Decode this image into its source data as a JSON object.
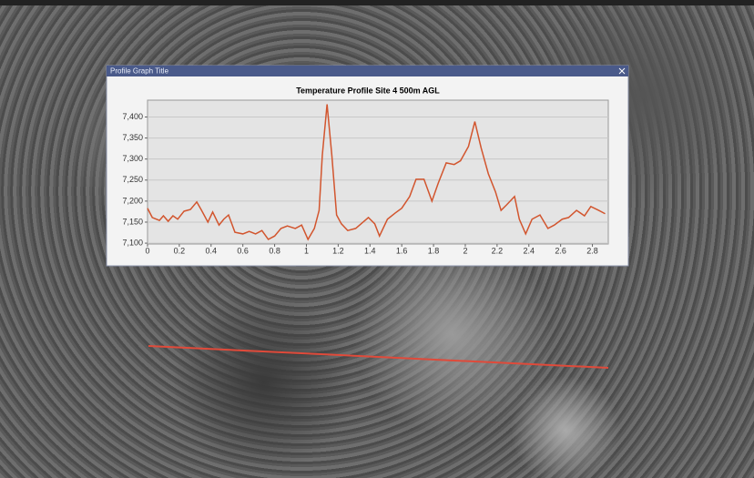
{
  "window": {
    "title": "Profile Graph Title"
  },
  "chart_data": {
    "type": "line",
    "title": "Temperature Profile   Site 4   500m AGL",
    "xlim": [
      0,
      2.9
    ],
    "ylim": [
      7098,
      7440
    ],
    "xticks": [
      0,
      0.2,
      0.4,
      0.6,
      0.8,
      1,
      1.2,
      1.4,
      1.6,
      1.8,
      2,
      2.2,
      2.4,
      2.6,
      2.8
    ],
    "yticks": [
      {
        "value": 7100,
        "label": "7,100"
      },
      {
        "value": 7150,
        "label": "7,150"
      },
      {
        "value": 7200,
        "label": "7,200"
      },
      {
        "value": 7250,
        "label": "7,250"
      },
      {
        "value": 7300,
        "label": "7,300"
      },
      {
        "value": 7350,
        "label": "7,350"
      },
      {
        "value": 7400,
        "label": "7,400"
      }
    ],
    "grid": true,
    "series": [
      {
        "color": "#d2552e",
        "x": [
          0,
          0.03,
          0.075,
          0.1,
          0.13,
          0.16,
          0.19,
          0.23,
          0.27,
          0.31,
          0.34,
          0.38,
          0.41,
          0.45,
          0.48,
          0.51,
          0.55,
          0.6,
          0.64,
          0.68,
          0.72,
          0.76,
          0.8,
          0.84,
          0.88,
          0.93,
          0.97,
          1.01,
          1.05,
          1.08,
          1.1,
          1.13,
          1.16,
          1.19,
          1.22,
          1.26,
          1.31,
          1.35,
          1.39,
          1.43,
          1.46,
          1.51,
          1.56,
          1.6,
          1.65,
          1.69,
          1.74,
          1.79,
          1.83,
          1.88,
          1.93,
          1.97,
          2.02,
          2.06,
          2.1,
          2.145,
          2.19,
          2.225,
          2.26,
          2.31,
          2.34,
          2.38,
          2.42,
          2.47,
          2.52,
          2.56,
          2.61,
          2.65,
          2.7,
          2.75,
          2.79,
          2.84,
          2.88
        ],
        "values": [
          7183,
          7161,
          7154,
          7165,
          7152,
          7165,
          7157,
          7176,
          7180,
          7198,
          7178,
          7150,
          7174,
          7143,
          7157,
          7167,
          7126,
          7122,
          7128,
          7122,
          7130,
          7109,
          7117,
          7135,
          7141,
          7135,
          7143,
          7109,
          7135,
          7178,
          7309,
          7430,
          7309,
          7167,
          7146,
          7130,
          7135,
          7148,
          7161,
          7146,
          7117,
          7157,
          7172,
          7183,
          7211,
          7252,
          7252,
          7200,
          7243,
          7291,
          7287,
          7296,
          7330,
          7389,
          7326,
          7265,
          7222,
          7178,
          7191,
          7211,
          7157,
          7122,
          7157,
          7167,
          7135,
          7143,
          7157,
          7161,
          7178,
          7165,
          7187,
          7178,
          7170
        ]
      }
    ]
  }
}
